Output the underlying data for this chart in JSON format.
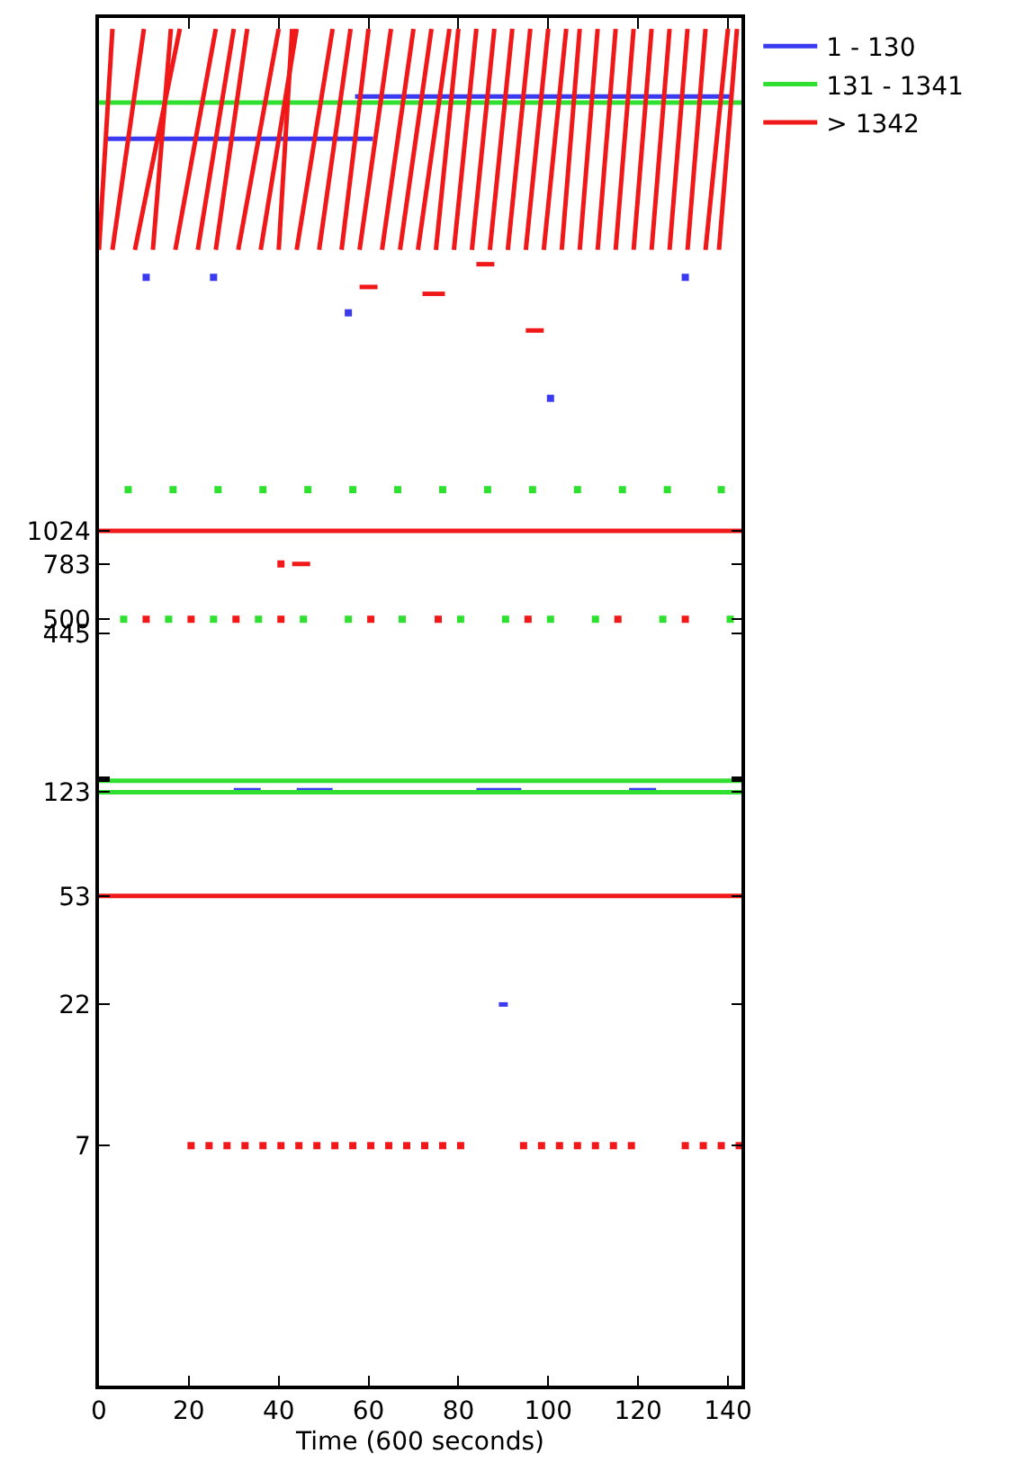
{
  "chart_data": {
    "type": "line",
    "xlabel": "Time (600 seconds)",
    "xlim": [
      0,
      143
    ],
    "xticks": [
      0,
      20,
      40,
      60,
      80,
      100,
      120,
      140
    ],
    "ylim": [
      1,
      65535
    ],
    "yticks": [
      7,
      22,
      53,
      {
        "value": 123,
        "label": "123"
      },
      {
        "value": 135,
        "label": null
      },
      {
        "value": 137,
        "label": null
      },
      {
        "value": 138,
        "label": null
      },
      {
        "value": 139,
        "label": null
      },
      445,
      500,
      783,
      1024
    ],
    "log": "y",
    "legend": "top right",
    "marker": "none",
    "line_style": "solid",
    "series": [
      {
        "name": "1 - 130",
        "color": "#3a3af0",
        "x": [
          2,
          61
        ],
        "values": [
          24600,
          24600
        ]
      },
      {
        "color": "#3a3af0",
        "x": [
          57,
          141
        ],
        "values": [
          34700,
          34700
        ]
      },
      {
        "color": "#3a3af0",
        "x": [
          89,
          91
        ],
        "values": [
          22,
          22
        ]
      },
      {
        "color": "#3a3af0",
        "x": [
          30,
          36,
          null,
          44,
          52,
          null,
          84,
          94,
          null,
          118,
          124
        ],
        "values": [
          125,
          125,
          null,
          125,
          125,
          null,
          125,
          125,
          null,
          125,
          125
        ]
      },
      {
        "color": "#3a3af0",
        "type": "scatter",
        "marker": "square",
        "x": [
          10.5,
          25.5,
          55.5,
          100.5,
          130.5
        ],
        "values": [
          8000,
          8000,
          6000,
          3000,
          8000
        ]
      },
      {
        "name": "131 - 1341",
        "color": "#30e030",
        "x": [
          0,
          143
        ],
        "values": [
          33000,
          33000
        ]
      },
      {
        "color": "#30e030",
        "x": [
          0,
          143
        ],
        "values": [
          135,
          135
        ]
      },
      {
        "color": "#30e030",
        "x": [
          0,
          143
        ],
        "values": [
          123,
          123
        ]
      },
      {
        "color": "#30e030",
        "type": "scatter",
        "marker": "square",
        "x": [
          6.5,
          16.5,
          26.5,
          36.5,
          46.5,
          56.5,
          66.5,
          76.5,
          86.5,
          96.5,
          106.5,
          116.5,
          126.5,
          138.5
        ],
        "values": [
          1430,
          1430,
          1430,
          1430,
          1430,
          1430,
          1430,
          1430,
          1430,
          1430,
          1430,
          1430,
          1430,
          1430
        ]
      },
      {
        "color": "#30e030",
        "type": "scatter",
        "marker": "square",
        "x": [
          5.5,
          15.5,
          25.5,
          35.5,
          45.5,
          55.5,
          67.5,
          80.5,
          90.5,
          100.5,
          110.5,
          125.5,
          140.5
        ],
        "values": [
          500,
          500,
          500,
          500,
          500,
          500,
          500,
          500,
          500,
          500,
          500,
          500,
          500
        ]
      },
      {
        "name": "> 1342",
        "color": "#f01818",
        "x": [
          0,
          3
        ],
        "values": [
          10000,
          60000
        ]
      },
      {
        "color": "#f01818",
        "x": [
          3,
          10
        ],
        "values": [
          10000,
          60000
        ]
      },
      {
        "color": "#f01818",
        "x": [
          8,
          18
        ],
        "values": [
          10000,
          60000
        ]
      },
      {
        "color": "#f01818",
        "x": [
          12,
          16
        ],
        "values": [
          10000,
          60000
        ]
      },
      {
        "color": "#f01818",
        "x": [
          17,
          26
        ],
        "values": [
          10000,
          60000
        ]
      },
      {
        "color": "#f01818",
        "x": [
          22,
          30
        ],
        "values": [
          10000,
          60000
        ]
      },
      {
        "color": "#f01818",
        "x": [
          26,
          33
        ],
        "values": [
          10000,
          60000
        ]
      },
      {
        "color": "#f01818",
        "x": [
          31,
          40
        ],
        "values": [
          10000,
          60000
        ]
      },
      {
        "color": "#f01818",
        "x": [
          36,
          44
        ],
        "values": [
          10000,
          60000
        ]
      },
      {
        "color": "#f01818",
        "x": [
          40,
          43
        ],
        "values": [
          10000,
          60000
        ]
      },
      {
        "color": "#f01818",
        "x": [
          44,
          52
        ],
        "values": [
          10000,
          60000
        ]
      },
      {
        "color": "#f01818",
        "x": [
          49,
          56
        ],
        "values": [
          10000,
          60000
        ]
      },
      {
        "color": "#f01818",
        "x": [
          54,
          60
        ],
        "values": [
          10000,
          60000
        ]
      },
      {
        "color": "#f01818",
        "x": [
          58,
          65
        ],
        "values": [
          10000,
          60000
        ]
      },
      {
        "color": "#f01818",
        "x": [
          63,
          70
        ],
        "values": [
          10000,
          60000
        ]
      },
      {
        "color": "#f01818",
        "x": [
          67,
          74
        ],
        "values": [
          10000,
          60000
        ]
      },
      {
        "color": "#f01818",
        "x": [
          71,
          78
        ],
        "values": [
          10000,
          60000
        ]
      },
      {
        "color": "#f01818",
        "x": [
          75,
          80
        ],
        "values": [
          10000,
          60000
        ]
      },
      {
        "color": "#f01818",
        "x": [
          79,
          84
        ],
        "values": [
          10000,
          60000
        ]
      },
      {
        "color": "#f01818",
        "x": [
          83,
          88
        ],
        "values": [
          10000,
          60000
        ]
      },
      {
        "color": "#f01818",
        "x": [
          87,
          92
        ],
        "values": [
          10000,
          60000
        ]
      },
      {
        "color": "#f01818",
        "x": [
          91,
          96
        ],
        "values": [
          10000,
          60000
        ]
      },
      {
        "color": "#f01818",
        "x": [
          95,
          100
        ],
        "values": [
          10000,
          60000
        ]
      },
      {
        "color": "#f01818",
        "x": [
          99,
          104
        ],
        "values": [
          10000,
          60000
        ]
      },
      {
        "color": "#f01818",
        "x": [
          103,
          107
        ],
        "values": [
          10000,
          60000
        ]
      },
      {
        "color": "#f01818",
        "x": [
          107,
          111
        ],
        "values": [
          10000,
          60000
        ]
      },
      {
        "color": "#f01818",
        "x": [
          111,
          115
        ],
        "values": [
          10000,
          60000
        ]
      },
      {
        "color": "#f01818",
        "x": [
          115,
          119
        ],
        "values": [
          10000,
          60000
        ]
      },
      {
        "color": "#f01818",
        "x": [
          119,
          123
        ],
        "values": [
          10000,
          60000
        ]
      },
      {
        "color": "#f01818",
        "x": [
          123,
          127
        ],
        "values": [
          10000,
          60000
        ]
      },
      {
        "color": "#f01818",
        "x": [
          127,
          131
        ],
        "values": [
          10000,
          60000
        ]
      },
      {
        "color": "#f01818",
        "x": [
          131,
          135
        ],
        "values": [
          10000,
          60000
        ]
      },
      {
        "color": "#f01818",
        "x": [
          135,
          140
        ],
        "values": [
          10000,
          60000
        ]
      },
      {
        "color": "#f01818",
        "x": [
          138,
          142
        ],
        "values": [
          10000,
          60000
        ]
      },
      {
        "color": "#f01818",
        "x": [
          0,
          143
        ],
        "values": [
          1024,
          1024
        ]
      },
      {
        "color": "#f01818",
        "x": [
          0,
          143
        ],
        "values": [
          53,
          53
        ]
      },
      {
        "color": "#f01818",
        "x": [
          43,
          47
        ],
        "values": [
          783,
          783
        ]
      },
      {
        "color": "#f01818",
        "x": [
          84,
          88
        ],
        "values": [
          8900,
          8900
        ]
      },
      {
        "color": "#f01818",
        "x": [
          72,
          77
        ],
        "values": [
          7000,
          7000
        ]
      },
      {
        "color": "#f01818",
        "x": [
          95,
          99
        ],
        "values": [
          5200,
          5200
        ]
      },
      {
        "color": "#f01818",
        "x": [
          58,
          62
        ],
        "values": [
          7400,
          7400
        ]
      },
      {
        "color": "#f01818",
        "type": "scatter",
        "marker": "square",
        "x": [
          20.5,
          24.5,
          28.5,
          32.5,
          36.5,
          40.5,
          44.5,
          48.5,
          52.5,
          56.5,
          60.5,
          64.5,
          68.5,
          72.5,
          76.5,
          80.5,
          94.5,
          98.5,
          102.5,
          106.5,
          110.5,
          114.5,
          118.5,
          130.5,
          134.5,
          138.5,
          142.5
        ],
        "values": [
          7,
          7,
          7,
          7,
          7,
          7,
          7,
          7,
          7,
          7,
          7,
          7,
          7,
          7,
          7,
          7,
          7,
          7,
          7,
          7,
          7,
          7,
          7,
          7,
          7,
          7,
          7
        ]
      },
      {
        "color": "#f01818",
        "type": "scatter",
        "marker": "square",
        "x": [
          10.5,
          20.5,
          30.5,
          40.5,
          40.5,
          60.5,
          75.5,
          95.5,
          115.5,
          130.5
        ],
        "values": [
          500,
          500,
          500,
          500,
          783,
          500,
          500,
          500,
          500,
          500
        ]
      }
    ]
  }
}
